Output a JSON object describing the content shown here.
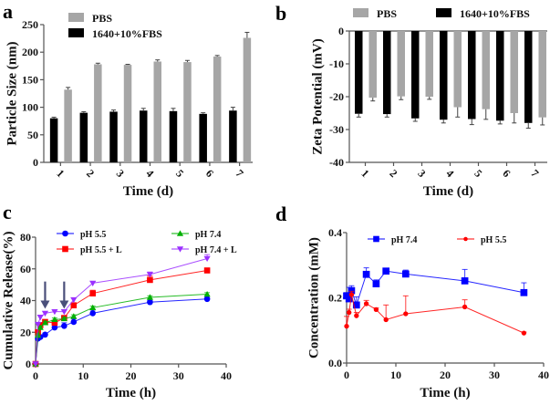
{
  "figure": {
    "panels": [
      "a",
      "b",
      "c",
      "d"
    ]
  },
  "chart_data": [
    {
      "id": "a",
      "panel_label": "a",
      "type": "bar",
      "title": "",
      "xlabel": "Time (d)",
      "ylabel": "Particle Size (nm)",
      "categories": [
        "1",
        "2",
        "3",
        "4",
        "5",
        "6",
        "7"
      ],
      "ylim": [
        0,
        250
      ],
      "yticks": [
        0,
        50,
        100,
        150,
        200,
        250
      ],
      "series": [
        {
          "name": "1640+10%FBS",
          "color": "#000000",
          "values": [
            80,
            90,
            92,
            94,
            93,
            88,
            94
          ],
          "errors": [
            2,
            2,
            3,
            4,
            5,
            2,
            6
          ]
        },
        {
          "name": "PBS",
          "color": "#a6a6a6",
          "values": [
            132,
            178,
            177,
            183,
            182,
            192,
            226
          ],
          "errors": [
            4,
            2,
            1,
            3,
            3,
            2,
            10
          ]
        }
      ],
      "legend": {
        "position": "top-left",
        "order": [
          "PBS",
          "1640+10%FBS"
        ]
      }
    },
    {
      "id": "b",
      "panel_label": "b",
      "type": "bar",
      "title": "",
      "xlabel": "Time (d)",
      "ylabel": "Zeta Potential (mV)",
      "categories": [
        "1",
        "2",
        "3",
        "4",
        "5",
        "6",
        "7"
      ],
      "ylim": [
        -40,
        0
      ],
      "yticks": [
        0,
        -10,
        -20,
        -30,
        -40
      ],
      "series": [
        {
          "name": "1640+10%FBS",
          "color": "#000000",
          "values": [
            -25.2,
            -25.3,
            -26.6,
            -27.0,
            -26.8,
            -27.3,
            -28.0
          ],
          "errors": [
            1.0,
            0.9,
            0.9,
            1.0,
            1.7,
            1.0,
            1.6
          ]
        },
        {
          "name": "PBS",
          "color": "#a6a6a6",
          "values": [
            -20.3,
            -19.9,
            -20.0,
            -23.2,
            -23.8,
            -25.0,
            -26.3
          ],
          "errors": [
            1.0,
            1.0,
            0.8,
            3.0,
            3.1,
            3.0,
            2.3
          ]
        }
      ],
      "legend": {
        "position": "top",
        "order": [
          "PBS",
          "1640+10%FBS"
        ]
      }
    },
    {
      "id": "c",
      "panel_label": "c",
      "type": "line",
      "title": "",
      "xlabel": "Time (h)",
      "ylabel": "Cumulative Release(%)",
      "xlim": [
        0,
        40
      ],
      "ylim": [
        0,
        80
      ],
      "xticks": [
        0,
        10,
        20,
        30,
        40
      ],
      "yticks": [
        0,
        20,
        40,
        60,
        80
      ],
      "x": [
        0,
        0.5,
        1,
        2,
        4,
        6,
        8,
        12,
        24,
        36
      ],
      "series": [
        {
          "name": "pH 5.5",
          "color": "#0000ff",
          "marker": "circle",
          "values": [
            0,
            16,
            17,
            18.5,
            23,
            24,
            26.5,
            32,
            39,
            41
          ],
          "errors": [
            0,
            1,
            1,
            1,
            2.5,
            2,
            2,
            2,
            1,
            1
          ]
        },
        {
          "name": "pH 5.5 + L",
          "color": "#ff0000",
          "marker": "square",
          "values": [
            0,
            20,
            24.5,
            26.5,
            26,
            29,
            37,
            44.5,
            53,
            59
          ],
          "errors": [
            0,
            1,
            1,
            1,
            1,
            1,
            1,
            2,
            2.5,
            1
          ]
        },
        {
          "name": "pH 7.4",
          "color": "#00b000",
          "marker": "triangle-up",
          "values": [
            0,
            18,
            23,
            26,
            28,
            28.5,
            30,
            35.5,
            42,
            44
          ],
          "errors": [
            0,
            1,
            1,
            1,
            1,
            1,
            1,
            1,
            1,
            1
          ]
        },
        {
          "name": "pH 7.4 + L",
          "color": "#9b30ff",
          "marker": "triangle-down",
          "values": [
            0,
            25,
            29.5,
            32,
            33,
            33,
            40.5,
            51,
            56.5,
            66.5
          ],
          "errors": [
            0,
            1,
            1,
            1,
            1,
            1,
            1,
            1,
            1.5,
            2.5
          ]
        }
      ],
      "annotations": [
        {
          "type": "arrow",
          "x": 2,
          "from_y": 52,
          "to_y": 36,
          "color": "#4a4f7a"
        },
        {
          "type": "arrow",
          "x": 6,
          "from_y": 52,
          "to_y": 36,
          "color": "#4a4f7a"
        }
      ],
      "legend": {
        "position": "top",
        "columns": 2,
        "order": [
          "pH 5.5",
          "pH 7.4",
          "pH 5.5 + L",
          "pH 7.4 + L"
        ]
      }
    },
    {
      "id": "d",
      "panel_label": "d",
      "type": "line",
      "title": "",
      "xlabel": "Time (h)",
      "ylabel": "Concentration (mM)",
      "xlim": [
        0,
        40
      ],
      "ylim": [
        0.0,
        0.4
      ],
      "xticks": [
        0,
        10,
        20,
        30,
        40
      ],
      "yticks": [
        0.0,
        0.2,
        0.4
      ],
      "ytick_labels": [
        "0.0",
        "0.2",
        "0.4"
      ],
      "x": [
        0,
        0.5,
        1,
        2,
        4,
        6,
        8,
        12,
        24,
        36
      ],
      "series": [
        {
          "name": "pH 7.4",
          "color": "#0000ff",
          "marker": "square",
          "values": [
            0.206,
            0.197,
            0.222,
            0.178,
            0.272,
            0.243,
            0.282,
            0.273,
            0.252,
            0.216
          ],
          "errors": [
            0.01,
            0.035,
            0.015,
            0.025,
            0.02,
            0.012,
            0.008,
            0.012,
            0.035,
            0.03
          ]
        },
        {
          "name": "pH 5.5",
          "color": "#ff0000",
          "marker": "diamond",
          "values": [
            0.113,
            0.155,
            0.21,
            0.145,
            0.182,
            0.164,
            0.133,
            0.151,
            0.172,
            0.092
          ],
          "errors": [
            0.03,
            0.01,
            0.01,
            0.01,
            0.01,
            0.005,
            0.045,
            0.055,
            0.022,
            0.003
          ]
        }
      ],
      "legend": {
        "position": "top",
        "columns": 2,
        "order": [
          "pH 7.4",
          "pH 5.5"
        ]
      }
    }
  ]
}
